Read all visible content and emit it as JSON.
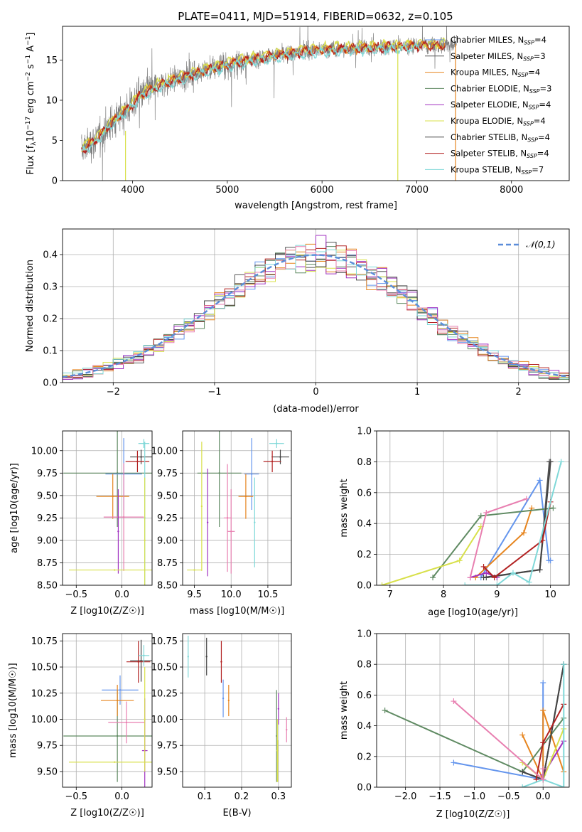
{
  "figure_title": "PLATE=0411, MJD=51914, FIBERID=0632, z=0.105",
  "colors": {
    "chab_miles": "#6495ED",
    "salp_miles": "#555555",
    "krou_miles": "#E6851F",
    "chab_elodie": "#5F8A62",
    "salp_elodie": "#A030C0",
    "krou_elodie": "#D8E04A",
    "chab_stelib": "#444444",
    "salp_stelib": "#B22222",
    "krou_stelib": "#7FD8D8",
    "pink": "#E87FB0",
    "data_grey": "#808080",
    "gauss": "#5B8DD9"
  },
  "chart_data": [
    {
      "id": "spectrum",
      "type": "line",
      "title": "PLATE=0411, MJD=51914, FIBERID=0632, z=0.105",
      "xlabel": "wavelength [Angstrom, rest frame]",
      "ylabel": "Flux [f_λ 10^-17 erg cm^-2 s^-1 A^-1]",
      "xlim": [
        3260,
        8610
      ],
      "ylim": [
        0,
        19.2
      ],
      "xticks": [
        4000,
        5000,
        6000,
        7000,
        8000
      ],
      "yticks": [
        0,
        5,
        10,
        15
      ],
      "legend_position": "upper right",
      "legend": [
        {
          "label": "Chabrier MILES, N_SSP=4",
          "color_key": "chab_miles"
        },
        {
          "label": "Salpeter MILES, N_SSP=3",
          "color_key": "salp_miles"
        },
        {
          "label": "Kroupa MILES, N_SSP=4",
          "color_key": "krou_miles"
        },
        {
          "label": "Chabrier ELODIE, N_SSP=3",
          "color_key": "chab_elodie"
        },
        {
          "label": "Salpeter ELODIE, N_SSP=4",
          "color_key": "salp_elodie"
        },
        {
          "label": "Kroupa ELODIE, N_SSP=4",
          "color_key": "krou_elodie"
        },
        {
          "label": "Chabrier STELIB, N_SSP=4",
          "color_key": "chab_stelib"
        },
        {
          "label": "Salpeter STELIB, N_SSP=4",
          "color_key": "salp_stelib"
        },
        {
          "label": "Kroupa STELIB, N_SSP=7",
          "color_key": "krou_stelib"
        }
      ],
      "continuum": {
        "x": [
          3450,
          3600,
          3800,
          3950,
          4100,
          4300,
          4600,
          4900,
          5200,
          5500,
          5800,
          6100,
          6400,
          6700,
          7000,
          7300,
          7400
        ],
        "y": [
          3.8,
          5.0,
          7.5,
          9.0,
          10.8,
          12.0,
          13.2,
          14.2,
          15.0,
          15.6,
          16.1,
          16.4,
          16.5,
          16.7,
          16.8,
          16.9,
          17.0
        ]
      },
      "model_end": {
        "red": 7300,
        "cyan": 7030
      },
      "data_x_range": [
        3460,
        7420
      ],
      "vertical_features": [
        {
          "x": 3925,
          "y_top": 6.2,
          "color_key": "krou_elodie"
        },
        {
          "x": 6800,
          "y_top": 17.0,
          "color_key": "krou_elodie"
        },
        {
          "x": 7410,
          "y_top": 17.0,
          "color_key": "krou_miles"
        }
      ]
    },
    {
      "id": "residuals",
      "type": "histogram",
      "xlabel": "(data-model)/error",
      "ylabel": "Normed distribution",
      "xlim": [
        -2.5,
        2.5
      ],
      "ylim": [
        0,
        0.48
      ],
      "xticks": [
        -2,
        -1,
        0,
        1,
        2
      ],
      "yticks": [
        0.0,
        0.1,
        0.2,
        0.3,
        0.4
      ],
      "legend_position": "upper right",
      "legend": [
        {
          "label": "𝒩(0,1)",
          "color_key": "gauss",
          "style": "dashed"
        }
      ],
      "bin_width": 0.1,
      "bins_start": -2.5,
      "series_color_keys": [
        "chab_miles",
        "salp_miles",
        "krou_miles",
        "chab_elodie",
        "salp_elodie",
        "krou_elodie",
        "chab_stelib",
        "salp_stelib",
        "krou_stelib",
        "pink"
      ],
      "peak_values": {
        "max": 0.46,
        "at": 0.0
      }
    },
    {
      "id": "age_vs_Z",
      "type": "scatter",
      "xlabel": "Z [log10(Z/Z☉)]",
      "ylabel": "age  [log10(age/yr)]",
      "xlim": [
        -0.65,
        0.33
      ],
      "ylim": [
        8.5,
        10.22
      ],
      "xticks": [
        -0.5,
        0.0
      ],
      "yticks": [
        8.5,
        8.75,
        9.0,
        9.25,
        9.5,
        9.75,
        10.0
      ],
      "points": [
        {
          "x": 0.21,
          "y": 9.93,
          "xerr": 0.12,
          "yerr": 0.08,
          "color_key": "chab_stelib"
        },
        {
          "x": 0.17,
          "y": 9.88,
          "xerr": 0.13,
          "yerr": 0.12,
          "color_key": "salp_stelib"
        },
        {
          "x": 0.24,
          "y": 10.08,
          "xerr": 0.06,
          "yerr": 0.05,
          "color_key": "krou_stelib"
        },
        {
          "x": -0.05,
          "y": 9.75,
          "xerr": 0.59,
          "yerr": 0.6,
          "color_key": "chab_elodie"
        },
        {
          "x": 0.02,
          "y": 9.74,
          "xerr": 0.2,
          "yerr": 0.4,
          "color_key": "chab_miles"
        },
        {
          "x": -0.1,
          "y": 9.49,
          "xerr": 0.18,
          "yerr": 0.25,
          "color_key": "krou_miles"
        },
        {
          "x": 0.02,
          "y": 9.26,
          "xerr": 0.22,
          "yerr": 0.6,
          "color_key": "pink"
        },
        {
          "x": 0.25,
          "y": 9.25,
          "xerr": 0.0,
          "yerr": 0.85,
          "color_key": "krou_stelib"
        },
        {
          "x": -0.04,
          "y": 9.1,
          "xerr": 0.0,
          "yerr": 0.47,
          "color_key": "salp_elodie"
        },
        {
          "x": -0.08,
          "y": 8.67,
          "xerr": 0.5,
          "yerr": 0.0,
          "color_key": "krou_elodie"
        },
        {
          "x": 0.25,
          "y": 9.0,
          "xerr": 0.0,
          "yerr": 0.7,
          "color_key": "krou_elodie"
        }
      ]
    },
    {
      "id": "age_vs_mass",
      "type": "scatter",
      "xlabel": "mass [log10(M/M☉)]",
      "ylabel": "",
      "xlim": [
        9.34,
        10.82
      ],
      "ylim": [
        8.5,
        10.22
      ],
      "xticks": [
        9.5,
        10.0,
        10.5
      ],
      "yticks": [
        8.5,
        8.75,
        9.0,
        9.25,
        9.5,
        9.75,
        10.0
      ],
      "points": [
        {
          "x": 10.67,
          "y": 9.93,
          "xerr": 0.12,
          "yerr": 0.08,
          "color_key": "chab_stelib"
        },
        {
          "x": 10.56,
          "y": 9.88,
          "xerr": 0.12,
          "yerr": 0.12,
          "color_key": "salp_stelib"
        },
        {
          "x": 10.62,
          "y": 10.08,
          "xerr": 0.1,
          "yerr": 0.05,
          "color_key": "krou_stelib"
        },
        {
          "x": 9.84,
          "y": 9.75,
          "xerr": 0.3,
          "yerr": 0.6,
          "color_key": "chab_elodie"
        },
        {
          "x": 10.28,
          "y": 9.74,
          "xerr": 0.1,
          "yerr": 0.4,
          "color_key": "chab_miles"
        },
        {
          "x": 10.2,
          "y": 9.49,
          "xerr": 0.1,
          "yerr": 0.25,
          "color_key": "krou_miles"
        },
        {
          "x": 9.95,
          "y": 9.25,
          "xerr": 0.05,
          "yerr": 0.6,
          "color_key": "pink"
        },
        {
          "x": 10.0,
          "y": 9.1,
          "xerr": 0.05,
          "yerr": 0.47,
          "color_key": "pink"
        },
        {
          "x": 9.68,
          "y": 9.2,
          "xerr": 0.0,
          "yerr": 0.6,
          "color_key": "salp_elodie"
        },
        {
          "x": 9.6,
          "y": 9.38,
          "xerr": 0.0,
          "yerr": 0.72,
          "color_key": "krou_elodie"
        },
        {
          "x": 9.5,
          "y": 8.67,
          "xerr": 0.1,
          "yerr": 0.0,
          "color_key": "krou_elodie"
        },
        {
          "x": 10.32,
          "y": 9.2,
          "xerr": 0.0,
          "yerr": 0.5,
          "color_key": "krou_stelib"
        }
      ]
    },
    {
      "id": "weight_vs_age",
      "type": "line",
      "xlabel": "age  [log10(age/yr)]",
      "ylabel": "mass weight",
      "xlim": [
        6.75,
        10.35
      ],
      "ylim": [
        0,
        1.0
      ],
      "xticks": [
        7,
        8,
        9,
        10
      ],
      "yticks": [
        0.0,
        0.2,
        0.4,
        0.6,
        0.8,
        1.0
      ],
      "series": [
        {
          "color_key": "chab_miles",
          "x": [
            8.7,
            9.8,
            9.97,
            10.0
          ],
          "y": [
            0.05,
            0.68,
            0.16,
            0.16
          ]
        },
        {
          "color_key": "salp_miles",
          "x": [
            8.8,
            9.8,
            9.98
          ],
          "y": [
            0.05,
            0.1,
            0.8
          ]
        },
        {
          "color_key": "krou_miles",
          "x": [
            8.6,
            9.5,
            9.65
          ],
          "y": [
            0.05,
            0.34,
            0.5
          ]
        },
        {
          "color_key": "chab_elodie",
          "x": [
            7.8,
            8.7,
            10.05
          ],
          "y": [
            0.05,
            0.45,
            0.5
          ]
        },
        {
          "color_key": "salp_elodie",
          "x": [
            8.5,
            8.8,
            9.0
          ],
          "y": [
            0.05,
            0.08,
            0.05
          ]
        },
        {
          "color_key": "krou_elodie",
          "x": [
            6.85,
            8.3,
            8.7
          ],
          "y": [
            0.0,
            0.16,
            0.38
          ]
        },
        {
          "color_key": "chab_stelib",
          "x": [
            8.75,
            9.8,
            10.0
          ],
          "y": [
            0.05,
            0.1,
            0.8
          ]
        },
        {
          "color_key": "salp_stelib",
          "x": [
            8.75,
            8.95,
            9.85,
            10.0
          ],
          "y": [
            0.12,
            0.05,
            0.29,
            0.54
          ]
        },
        {
          "color_key": "krou_stelib",
          "x": [
            8.4,
            9.0,
            9.3,
            9.6,
            10.2
          ],
          "y": [
            0.0,
            0.0,
            0.08,
            0.02,
            0.8
          ]
        },
        {
          "color_key": "pink",
          "x": [
            8.5,
            8.8,
            9.55
          ],
          "y": [
            0.05,
            0.47,
            0.56
          ]
        }
      ]
    },
    {
      "id": "mass_vs_Z",
      "type": "scatter",
      "xlabel": "Z [log10(Z/Z☉)]",
      "ylabel": "mass [log10(M/M☉)]",
      "xlim": [
        -0.65,
        0.33
      ],
      "ylim": [
        9.35,
        10.82
      ],
      "xticks": [
        -0.5,
        0.0
      ],
      "yticks": [
        9.5,
        9.75,
        10.0,
        10.25,
        10.5,
        10.75
      ],
      "points": [
        {
          "x": 0.21,
          "y": 10.56,
          "xerr": 0.12,
          "yerr": 0.2,
          "color_key": "chab_stelib"
        },
        {
          "x": 0.18,
          "y": 10.55,
          "xerr": 0.13,
          "yerr": 0.2,
          "color_key": "salp_stelib"
        },
        {
          "x": 0.24,
          "y": 10.61,
          "xerr": 0.06,
          "yerr": 0.1,
          "color_key": "krou_stelib"
        },
        {
          "x": -0.05,
          "y": 9.84,
          "xerr": 0.59,
          "yerr": 0.44,
          "color_key": "chab_elodie"
        },
        {
          "x": -0.02,
          "y": 10.28,
          "xerr": 0.2,
          "yerr": 0.14,
          "color_key": "chab_miles"
        },
        {
          "x": -0.05,
          "y": 10.18,
          "xerr": 0.18,
          "yerr": 0.15,
          "color_key": "krou_miles"
        },
        {
          "x": 0.05,
          "y": 9.97,
          "xerr": 0.2,
          "yerr": 0.2,
          "color_key": "pink"
        },
        {
          "x": 0.25,
          "y": 9.7,
          "xerr": 0.03,
          "yerr": 0.5,
          "color_key": "salp_elodie"
        },
        {
          "x": -0.08,
          "y": 9.59,
          "xerr": 0.5,
          "yerr": 0.0,
          "color_key": "krou_elodie"
        },
        {
          "x": 0.25,
          "y": 10.0,
          "xerr": 0.0,
          "yerr": 0.5,
          "color_key": "krou_elodie"
        }
      ]
    },
    {
      "id": "mass_vs_ebv",
      "type": "scatter",
      "xlabel": "E(B-V)",
      "ylabel": "",
      "xlim": [
        0.04,
        0.335
      ],
      "ylim": [
        9.35,
        10.82
      ],
      "xticks": [
        0.1,
        0.2,
        0.3
      ],
      "yticks": [
        9.5,
        9.75,
        10.0,
        10.25,
        10.5,
        10.75
      ],
      "points": [
        {
          "x": 0.055,
          "y": 10.6,
          "yerr": 0.2,
          "color_key": "krou_stelib"
        },
        {
          "x": 0.105,
          "y": 10.6,
          "yerr": 0.18,
          "color_key": "chab_stelib"
        },
        {
          "x": 0.145,
          "y": 10.55,
          "yerr": 0.2,
          "color_key": "salp_stelib"
        },
        {
          "x": 0.15,
          "y": 10.2,
          "yerr": 0.18,
          "color_key": "chab_miles"
        },
        {
          "x": 0.165,
          "y": 10.18,
          "yerr": 0.15,
          "color_key": "krou_miles"
        },
        {
          "x": 0.295,
          "y": 9.84,
          "yerr": 0.44,
          "color_key": "chab_elodie"
        },
        {
          "x": 0.297,
          "y": 9.7,
          "yerr": 0.3,
          "color_key": "krou_elodie"
        },
        {
          "x": 0.3,
          "y": 10.1,
          "yerr": 0.15,
          "color_key": "salp_elodie"
        },
        {
          "x": 0.322,
          "y": 9.9,
          "yerr": 0.12,
          "color_key": "pink"
        },
        {
          "x": 0.298,
          "y": 9.6,
          "yerr": 0.2,
          "color_key": "krou_elodie"
        }
      ]
    },
    {
      "id": "weight_vs_Z",
      "type": "line",
      "xlabel": "Z [log10(Z/Z☉)]",
      "ylabel": "mass weight",
      "xlim": [
        -2.42,
        0.38
      ],
      "ylim": [
        0,
        1.0
      ],
      "xticks": [
        -2.0,
        -1.5,
        -1.0,
        -0.5,
        0.0
      ],
      "yticks": [
        0.0,
        0.2,
        0.4,
        0.6,
        0.8,
        1.0
      ],
      "series": [
        {
          "color_key": "chab_miles",
          "x": [
            -1.3,
            0.0,
            0.0
          ],
          "y": [
            0.16,
            0.05,
            0.68
          ]
        },
        {
          "color_key": "salp_miles",
          "x": [
            -0.3,
            0.0,
            0.3
          ],
          "y": [
            0.1,
            0.05,
            0.8
          ]
        },
        {
          "color_key": "krou_miles",
          "x": [
            -0.3,
            0.0,
            0.0,
            0.3
          ],
          "y": [
            0.34,
            0.05,
            0.5,
            0.1
          ]
        },
        {
          "color_key": "chab_elodie",
          "x": [
            -2.3,
            -0.3,
            0.3
          ],
          "y": [
            0.5,
            0.1,
            0.45
          ]
        },
        {
          "color_key": "salp_elodie",
          "x": [
            0.0,
            0.0,
            0.3
          ],
          "y": [
            0.05,
            0.08,
            0.3
          ]
        },
        {
          "color_key": "krou_elodie",
          "x": [
            -0.3,
            0.0,
            0.3
          ],
          "y": [
            0.16,
            0.05,
            0.38
          ]
        },
        {
          "color_key": "chab_stelib",
          "x": [
            -0.3,
            0.0,
            0.3
          ],
          "y": [
            0.1,
            0.05,
            0.8
          ]
        },
        {
          "color_key": "salp_stelib",
          "x": [
            -0.1,
            0.0,
            0.3
          ],
          "y": [
            0.05,
            0.29,
            0.54
          ]
        },
        {
          "color_key": "krou_stelib",
          "x": [
            -0.3,
            0.0,
            0.3,
            0.3
          ],
          "y": [
            0.0,
            0.05,
            0.0,
            0.8
          ]
        },
        {
          "color_key": "pink",
          "x": [
            -1.3,
            0.0,
            0.0
          ],
          "y": [
            0.56,
            0.05,
            0.12
          ]
        }
      ]
    }
  ]
}
